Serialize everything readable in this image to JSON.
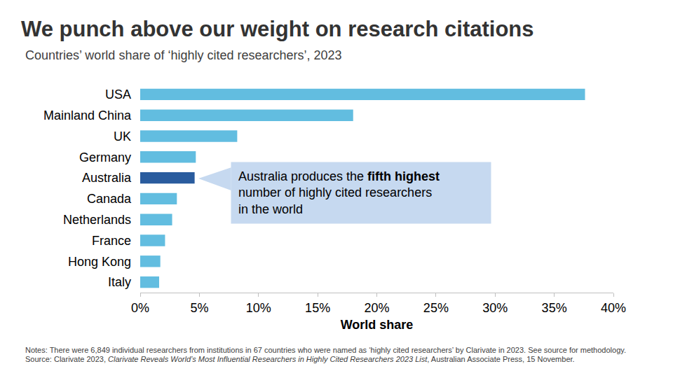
{
  "chart_data": {
    "type": "bar",
    "orientation": "horizontal",
    "title": "We punch above our weight on research citations",
    "subtitle": "Countries’ world share of ‘highly cited researchers’, 2023",
    "x_label": "World share",
    "categories": [
      "USA",
      "Mainland China",
      "UK",
      "Germany",
      "Australia",
      "Canada",
      "Netherlands",
      "France",
      "Hong Kong",
      "Italy"
    ],
    "values": [
      37.6,
      18.0,
      8.2,
      4.7,
      4.6,
      3.1,
      2.7,
      2.1,
      1.7,
      1.6
    ],
    "colors": [
      "#62bde0",
      "#62bde0",
      "#62bde0",
      "#62bde0",
      "#2a5c9e",
      "#62bde0",
      "#62bde0",
      "#62bde0",
      "#62bde0",
      "#62bde0"
    ],
    "xlim": [
      0,
      40
    ],
    "xticks": [
      {
        "value": 0,
        "label": "0%"
      },
      {
        "value": 5,
        "label": "5%"
      },
      {
        "value": 10,
        "label": "10%"
      },
      {
        "value": 15,
        "label": "15%"
      },
      {
        "value": 20,
        "label": "20%"
      },
      {
        "value": 25,
        "label": "25%"
      },
      {
        "value": 30,
        "label": "30%"
      },
      {
        "value": 35,
        "label": "35%"
      },
      {
        "value": 40,
        "label": "40%"
      }
    ],
    "grid": false,
    "annotation": {
      "lines": [
        "Australia produces the fifth highest",
        "number of highly cited researchers",
        "in the world"
      ],
      "emphasis": "fifth highest"
    },
    "notes": {
      "text": "Notes: There were 6,849 individual researchers from institutions in 67 countries who were named as ‘highly cited researchers’ by Clarivate in 2023. See source for methodology. Source: Clarivate 2023, Clarivate Reveals World’s Most Influential Researchers in Highly Cited Researchers 2023 List, Australian Associate Press, 15 November.",
      "emphasis": "Clarivate Reveals World’s Most Influential Researchers in Highly Cited Researchers 2023 List"
    }
  }
}
